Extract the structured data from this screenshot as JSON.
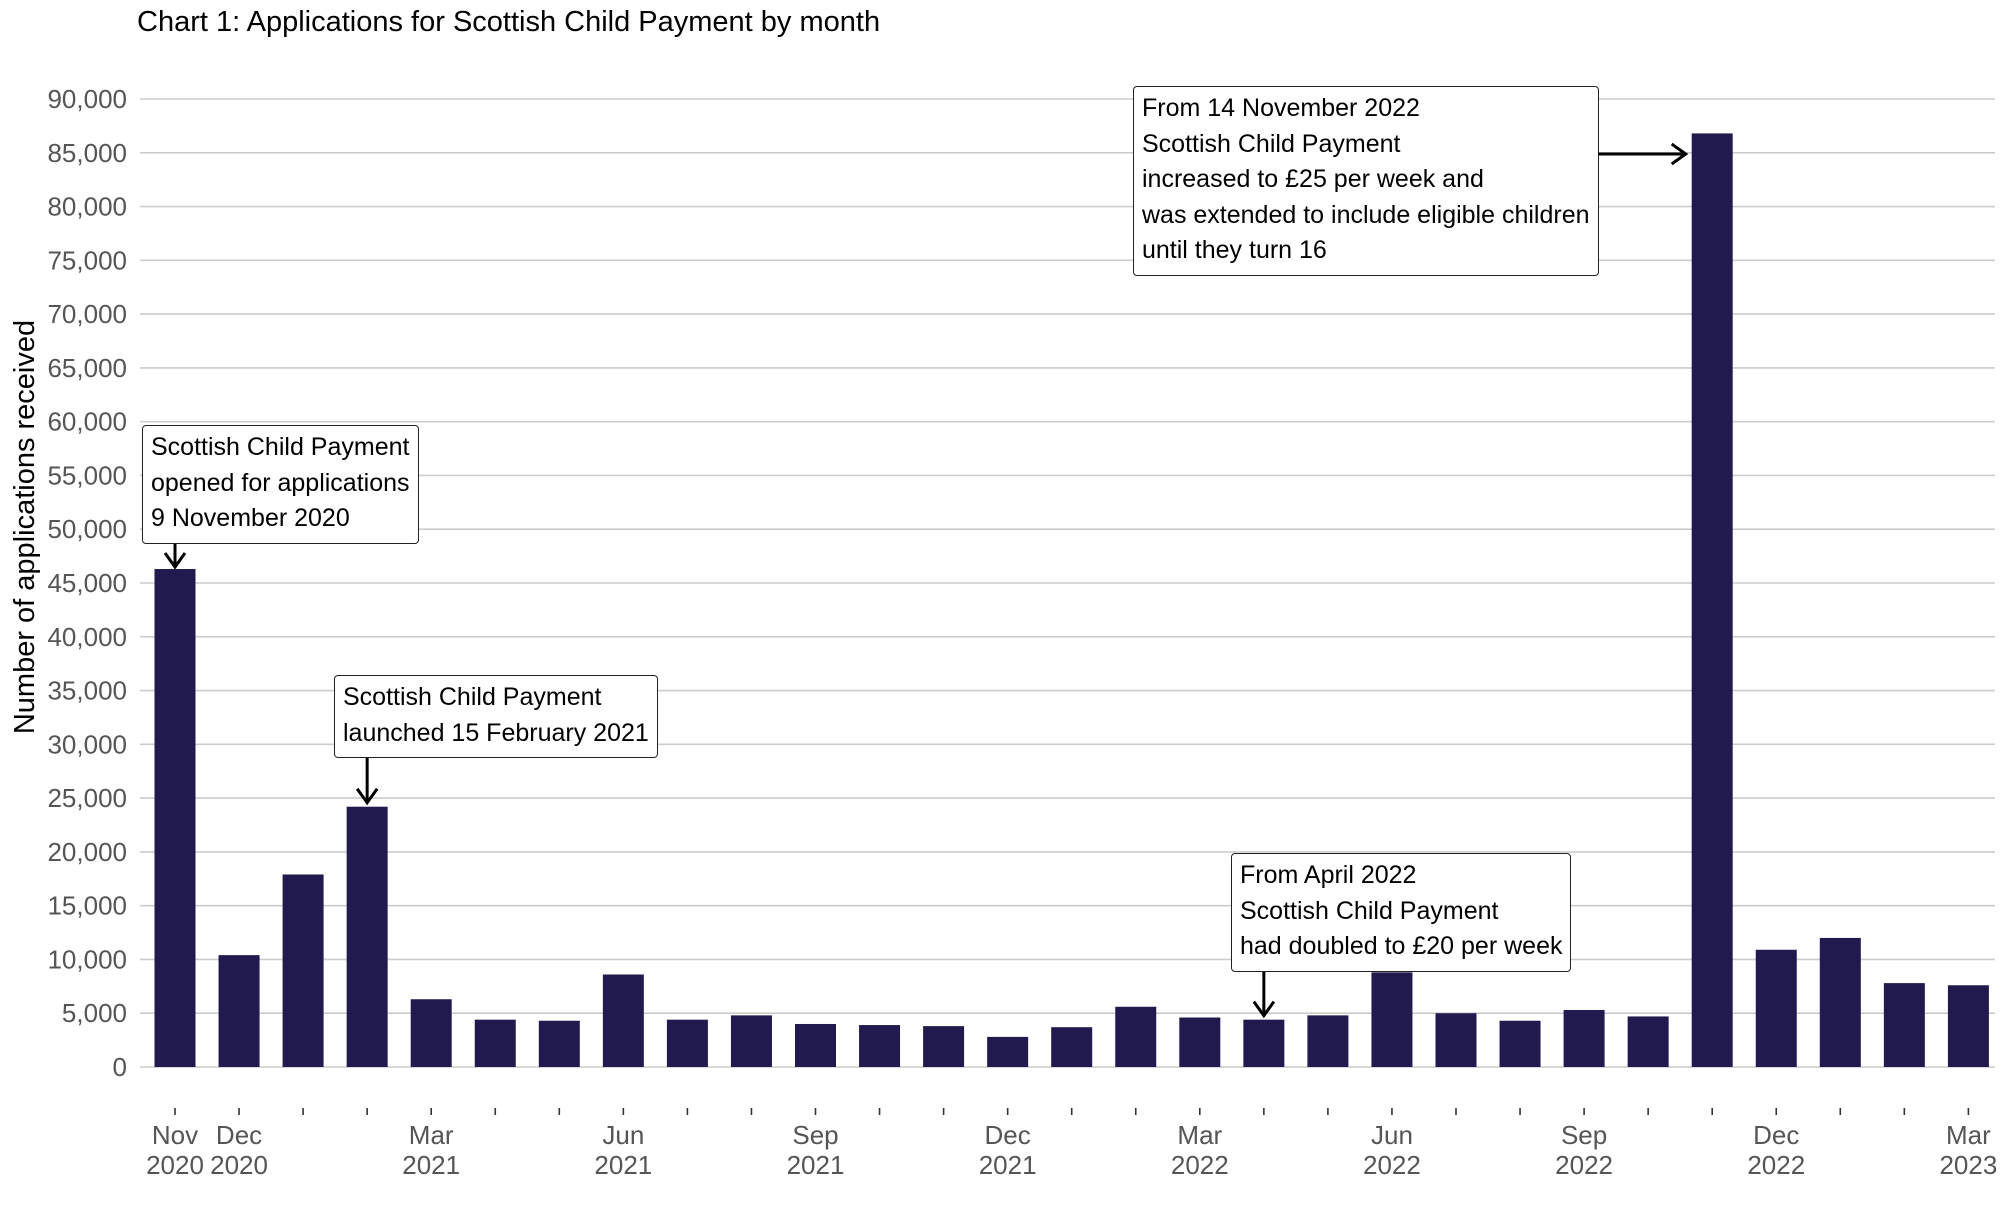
{
  "title": "Chart 1: Applications for Scottish Child Payment by month",
  "colors": {
    "bar": "#201a4f",
    "grid": "#cccccc",
    "axis_text": "#555555"
  },
  "chart_data": {
    "type": "bar",
    "title": "Chart 1: Applications for Scottish Child Payment by month",
    "xlabel": "",
    "ylabel": "Number of applications received",
    "ylim": [
      0,
      90000
    ],
    "yticks": [
      0,
      5000,
      10000,
      15000,
      20000,
      25000,
      30000,
      35000,
      40000,
      45000,
      50000,
      55000,
      60000,
      65000,
      70000,
      75000,
      80000,
      85000,
      90000
    ],
    "ytick_labels": [
      "0",
      "5,000",
      "10,000",
      "15,000",
      "20,000",
      "25,000",
      "30,000",
      "35,000",
      "40,000",
      "45,000",
      "50,000",
      "55,000",
      "60,000",
      "65,000",
      "70,000",
      "75,000",
      "80,000",
      "85,000",
      "90,000"
    ],
    "grid": true,
    "legend": "none",
    "categories": [
      "Nov 2020",
      "Dec 2020",
      "Jan 2021",
      "Feb 2021",
      "Mar 2021",
      "Apr 2021",
      "May 2021",
      "Jun 2021",
      "Jul 2021",
      "Aug 2021",
      "Sep 2021",
      "Oct 2021",
      "Nov 2021",
      "Dec 2021",
      "Jan 2022",
      "Feb 2022",
      "Mar 2022",
      "Apr 2022",
      "May 2022",
      "Jun 2022",
      "Jul 2022",
      "Aug 2022",
      "Sep 2022",
      "Oct 2022",
      "Nov 2022",
      "Dec 2022",
      "Jan 2023",
      "Feb 2023",
      "Mar 2023"
    ],
    "x_tick_labels": [
      {
        "month": "Nov",
        "year": "2020"
      },
      {
        "month": "Dec",
        "year": "2020"
      },
      {
        "month": "",
        "year": ""
      },
      {
        "month": "",
        "year": ""
      },
      {
        "month": "Mar",
        "year": "2021"
      },
      {
        "month": "",
        "year": ""
      },
      {
        "month": "",
        "year": ""
      },
      {
        "month": "Jun",
        "year": "2021"
      },
      {
        "month": "",
        "year": ""
      },
      {
        "month": "",
        "year": ""
      },
      {
        "month": "Sep",
        "year": "2021"
      },
      {
        "month": "",
        "year": ""
      },
      {
        "month": "",
        "year": ""
      },
      {
        "month": "Dec",
        "year": "2021"
      },
      {
        "month": "",
        "year": ""
      },
      {
        "month": "",
        "year": ""
      },
      {
        "month": "Mar",
        "year": "2022"
      },
      {
        "month": "",
        "year": ""
      },
      {
        "month": "",
        "year": ""
      },
      {
        "month": "Jun",
        "year": "2022"
      },
      {
        "month": "",
        "year": ""
      },
      {
        "month": "",
        "year": ""
      },
      {
        "month": "Sep",
        "year": "2022"
      },
      {
        "month": "",
        "year": ""
      },
      {
        "month": "",
        "year": ""
      },
      {
        "month": "Dec",
        "year": "2022"
      },
      {
        "month": "",
        "year": ""
      },
      {
        "month": "",
        "year": ""
      },
      {
        "month": "Mar",
        "year": "2023"
      }
    ],
    "values": [
      46300,
      10400,
      17900,
      24200,
      6300,
      4400,
      4300,
      8600,
      4400,
      4800,
      4000,
      3900,
      3800,
      2800,
      3700,
      5600,
      4600,
      4400,
      4800,
      8800,
      5000,
      4300,
      5300,
      4700,
      86800,
      10900,
      12000,
      7800,
      7600
    ],
    "annotations": [
      {
        "lines": [
          "Scottish Child Payment",
          "opened for applications",
          "9 November 2020"
        ],
        "points_to": "Nov 2020"
      },
      {
        "lines": [
          "Scottish Child Payment",
          "launched 15 February 2021"
        ],
        "points_to": "Feb 2021"
      },
      {
        "lines": [
          "From April 2022",
          "Scottish Child Payment",
          "had doubled to £20 per week"
        ],
        "points_to": "Apr 2022"
      },
      {
        "lines": [
          "From 14 November 2022",
          "Scottish Child Payment",
          "increased to £25 per week and",
          "was extended to include eligible children",
          "until they turn 16"
        ],
        "points_to": "Nov 2022"
      }
    ]
  }
}
